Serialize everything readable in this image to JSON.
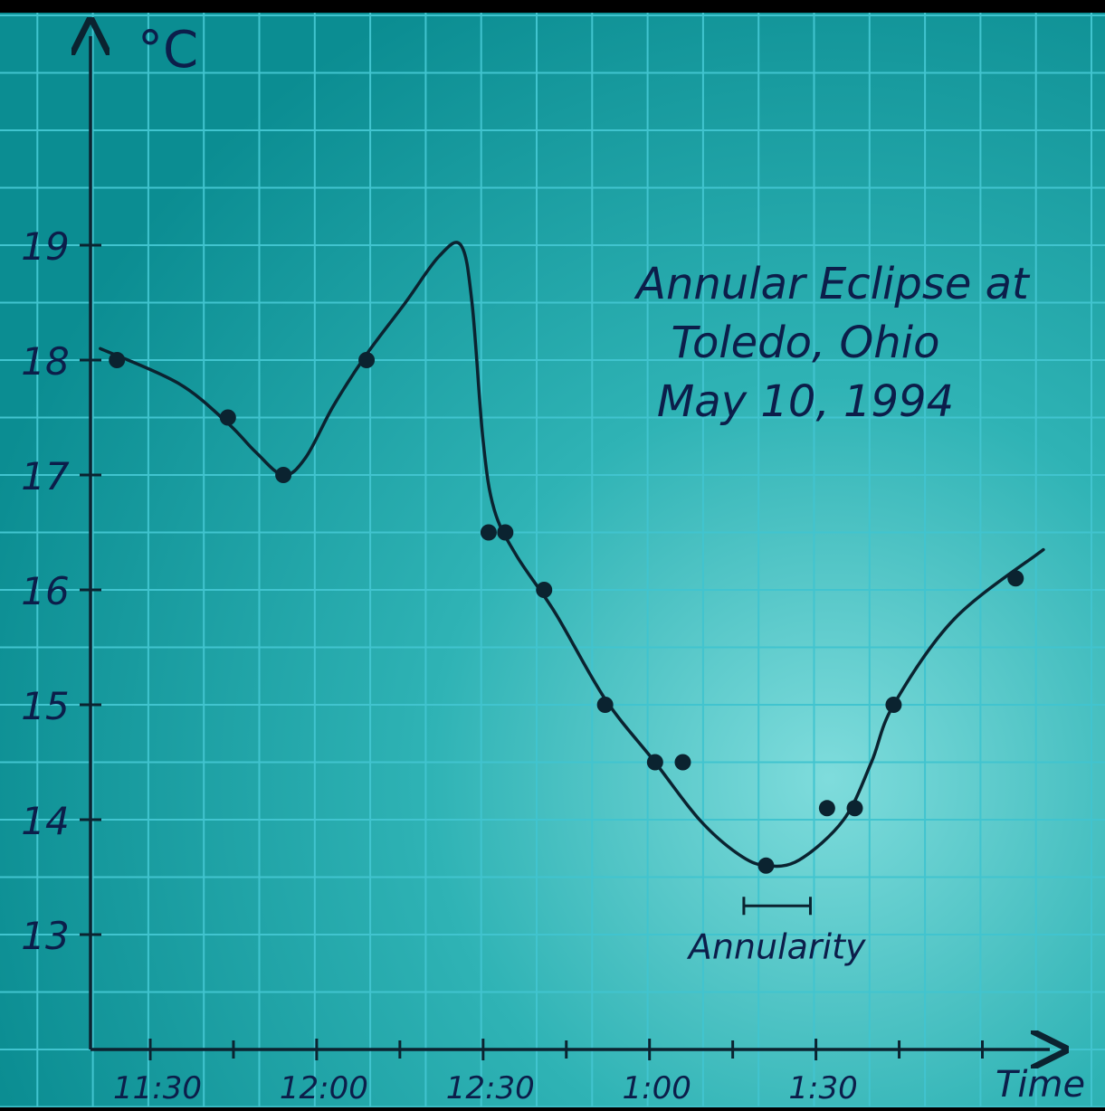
{
  "chart_data": {
    "type": "line",
    "title": "Annular Eclipse at Toledo, Ohio May 10, 1994",
    "title_lines": [
      "Annular Eclipse at",
      "Toledo, Ohio",
      "May 10, 1994"
    ],
    "ylabel": "°C",
    "xlabel": "Time",
    "ylim": [
      12,
      20
    ],
    "yticks": [
      13,
      14,
      15,
      16,
      17,
      18,
      19
    ],
    "xlim": [
      690,
      810
    ],
    "xticks": [
      {
        "value": 690,
        "label": "11:30"
      },
      {
        "value": 720,
        "label": "12:00"
      },
      {
        "value": 750,
        "label": "12:30"
      },
      {
        "value": 780,
        "label": "1:00"
      },
      {
        "value": 810,
        "label": "1:30"
      }
    ],
    "grid": true,
    "series": [
      {
        "points": [
          {
            "x": 684,
            "y": 18.0
          },
          {
            "x": 704,
            "y": 17.5
          },
          {
            "x": 714,
            "y": 17.0
          },
          {
            "x": 729,
            "y": 18.0
          },
          {
            "x": 751,
            "y": 16.5
          },
          {
            "x": 754,
            "y": 16.5
          },
          {
            "x": 761,
            "y": 16.0
          },
          {
            "x": 772,
            "y": 15.0
          },
          {
            "x": 781,
            "y": 14.5
          },
          {
            "x": 786,
            "y": 14.5
          },
          {
            "x": 801,
            "y": 13.6
          },
          {
            "x": 812,
            "y": 14.1
          },
          {
            "x": 817,
            "y": 14.1
          },
          {
            "x": 824,
            "y": 15.0
          },
          {
            "x": 846,
            "y": 16.1
          }
        ]
      }
    ],
    "curve": [
      {
        "x": 681,
        "y": 18.1
      },
      {
        "x": 695,
        "y": 17.8
      },
      {
        "x": 704,
        "y": 17.45
      },
      {
        "x": 709,
        "y": 17.2
      },
      {
        "x": 714,
        "y": 17.0
      },
      {
        "x": 718,
        "y": 17.15
      },
      {
        "x": 723,
        "y": 17.6
      },
      {
        "x": 729,
        "y": 18.05
      },
      {
        "x": 736,
        "y": 18.5
      },
      {
        "x": 742,
        "y": 18.9
      },
      {
        "x": 746,
        "y": 19.0
      },
      {
        "x": 748,
        "y": 18.5
      },
      {
        "x": 750,
        "y": 17.3
      },
      {
        "x": 752,
        "y": 16.7
      },
      {
        "x": 756,
        "y": 16.3
      },
      {
        "x": 763,
        "y": 15.8
      },
      {
        "x": 772,
        "y": 15.05
      },
      {
        "x": 781,
        "y": 14.5
      },
      {
        "x": 789,
        "y": 14.0
      },
      {
        "x": 796,
        "y": 13.7
      },
      {
        "x": 801,
        "y": 13.6
      },
      {
        "x": 807,
        "y": 13.65
      },
      {
        "x": 815,
        "y": 14.0
      },
      {
        "x": 820,
        "y": 14.5
      },
      {
        "x": 824,
        "y": 15.0
      },
      {
        "x": 835,
        "y": 15.75
      },
      {
        "x": 851,
        "y": 16.35
      }
    ],
    "annotations": [
      {
        "text": "Annularity",
        "x_start": 797,
        "x_end": 809,
        "y": 13.25
      }
    ],
    "colors": {
      "paper": "#0e9e9e",
      "grid": "#41c4cf",
      "ink": "#0b2330",
      "text": "#0c1e4a"
    }
  }
}
